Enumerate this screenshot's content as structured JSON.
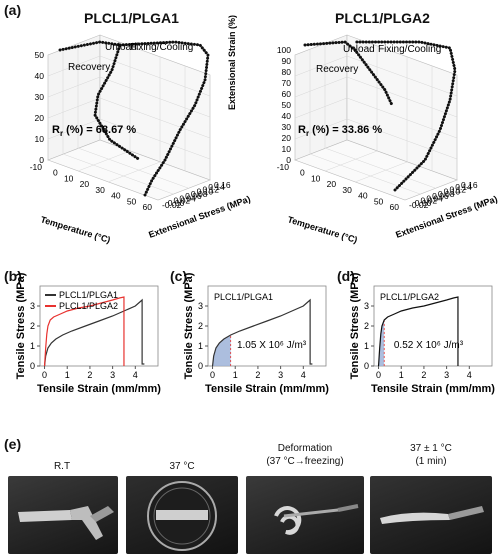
{
  "panels": {
    "a": "(a)",
    "b": "(b)",
    "c": "(c)",
    "d": "(d)",
    "e": "(e)"
  },
  "panel_a": {
    "left_title": "PLCL1/PLGA1",
    "right_title": "PLCL1/PLGA2",
    "left_rr": "Rr (%) = 68.67 %",
    "right_rr": "Rr (%) = 33.86 %",
    "rr_main": "R",
    "rr_sub": "r",
    "left_rr_value": " (%) = 68.67 %",
    "right_rr_value": " (%) = 33.86 %",
    "label_unload": "Unload",
    "label_fixing": "Fixing/Cooling",
    "label_recovery": "Recovery",
    "zlabel": "Extensional Strain (%)",
    "xlabel": "Temperature (°C)",
    "ylabel": "Extensional Stress (MPa)",
    "temp_ticks": [
      "-10",
      "0",
      "10",
      "20",
      "30",
      "40",
      "50",
      "60"
    ],
    "stress_ticks": [
      "-0.02",
      "0.00",
      "0.02",
      "0.04",
      "0.06",
      "0.08",
      "0.10",
      "0.12",
      "0.14",
      "0.16"
    ],
    "left_strain_ticks": [
      "0",
      "10",
      "20",
      "30",
      "40",
      "50"
    ],
    "right_strain_ticks": [
      "0",
      "10",
      "20",
      "30",
      "40",
      "50",
      "60",
      "70",
      "80",
      "90",
      "100"
    ]
  },
  "panel_e": {
    "captions": [
      [
        "R.T"
      ],
      [
        "37 °C"
      ],
      [
        "Deformation",
        "(37 °C→freezing)"
      ],
      [
        "37 ± 1 °C",
        "(1 min)"
      ]
    ]
  },
  "chart_data": [
    {
      "type": "line",
      "panel": "b",
      "xlabel": "Tensile Strain (mm/mm)",
      "ylabel": "Tensile Stress (MPa)",
      "xlim": [
        -0.2,
        5
      ],
      "ylim": [
        0,
        4
      ],
      "xticks": [
        "0",
        "1",
        "2",
        "3",
        "4"
      ],
      "yticks": [
        "0",
        "1",
        "2",
        "3"
      ],
      "legend": "top-left",
      "series": [
        {
          "name": "PLCL1/PLGA1",
          "color": "#333333",
          "x": [
            0,
            0.05,
            0.15,
            0.3,
            0.5,
            0.8,
            1.2,
            1.8,
            2.4,
            3.0,
            3.6,
            4.0,
            4.3,
            4.3,
            4.35,
            4.4
          ],
          "y": [
            0,
            0.5,
            0.9,
            1.15,
            1.35,
            1.55,
            1.75,
            2.0,
            2.25,
            2.5,
            2.8,
            3.0,
            3.3,
            0.1,
            0.1,
            0.1
          ]
        },
        {
          "name": "PLCL1/PLGA2",
          "color": "#e8322f",
          "x": [
            0,
            0.05,
            0.1,
            0.15,
            0.25,
            0.4,
            0.7,
            1.0,
            1.5,
            2.0,
            2.5,
            3.0,
            3.3,
            3.5,
            3.5
          ],
          "y": [
            0,
            0.9,
            1.6,
            2.0,
            2.3,
            2.45,
            2.6,
            2.75,
            2.9,
            3.0,
            3.15,
            3.3,
            3.4,
            3.45,
            0
          ]
        }
      ]
    },
    {
      "type": "line",
      "panel": "c",
      "title": "PLCL1/PLGA1",
      "xlabel": "Tensile Strain (mm/mm)",
      "ylabel": "Tensile Stress (MPa)",
      "xlim": [
        -0.2,
        5
      ],
      "ylim": [
        0,
        4
      ],
      "xticks": [
        "0",
        "1",
        "2",
        "3",
        "4"
      ],
      "yticks": [
        "0",
        "1",
        "2",
        "3"
      ],
      "annotation": "1.05 X 10⁶ J/m³",
      "shaded_until_x": 0.8,
      "series": [
        {
          "color": "#333333",
          "x": [
            0,
            0.05,
            0.15,
            0.3,
            0.5,
            0.8,
            1.2,
            1.8,
            2.4,
            3.0,
            3.6,
            4.0,
            4.3,
            4.3,
            4.35,
            4.4
          ],
          "y": [
            0,
            0.5,
            0.9,
            1.15,
            1.35,
            1.55,
            1.75,
            2.0,
            2.25,
            2.5,
            2.8,
            3.0,
            3.3,
            0.1,
            0.1,
            0.1
          ]
        }
      ]
    },
    {
      "type": "line",
      "panel": "d",
      "title": "PLCL1/PLGA2",
      "xlabel": "Tensile Strain (mm/mm)",
      "ylabel": "Tensile Stress (MPa)",
      "xlim": [
        -0.2,
        5
      ],
      "ylim": [
        0,
        4
      ],
      "xticks": [
        "0",
        "1",
        "2",
        "3",
        "4"
      ],
      "yticks": [
        "0",
        "1",
        "2",
        "3"
      ],
      "annotation": "0.52 X 10⁶ J/m³",
      "shaded_until_x": 0.25,
      "series": [
        {
          "color": "#111111",
          "x": [
            0,
            0.05,
            0.1,
            0.15,
            0.25,
            0.4,
            0.7,
            1.0,
            1.5,
            2.0,
            2.5,
            3.0,
            3.3,
            3.5,
            3.5
          ],
          "y": [
            0,
            0.9,
            1.6,
            2.0,
            2.3,
            2.45,
            2.6,
            2.75,
            2.9,
            3.0,
            3.15,
            3.3,
            3.4,
            3.45,
            0
          ]
        }
      ]
    }
  ]
}
